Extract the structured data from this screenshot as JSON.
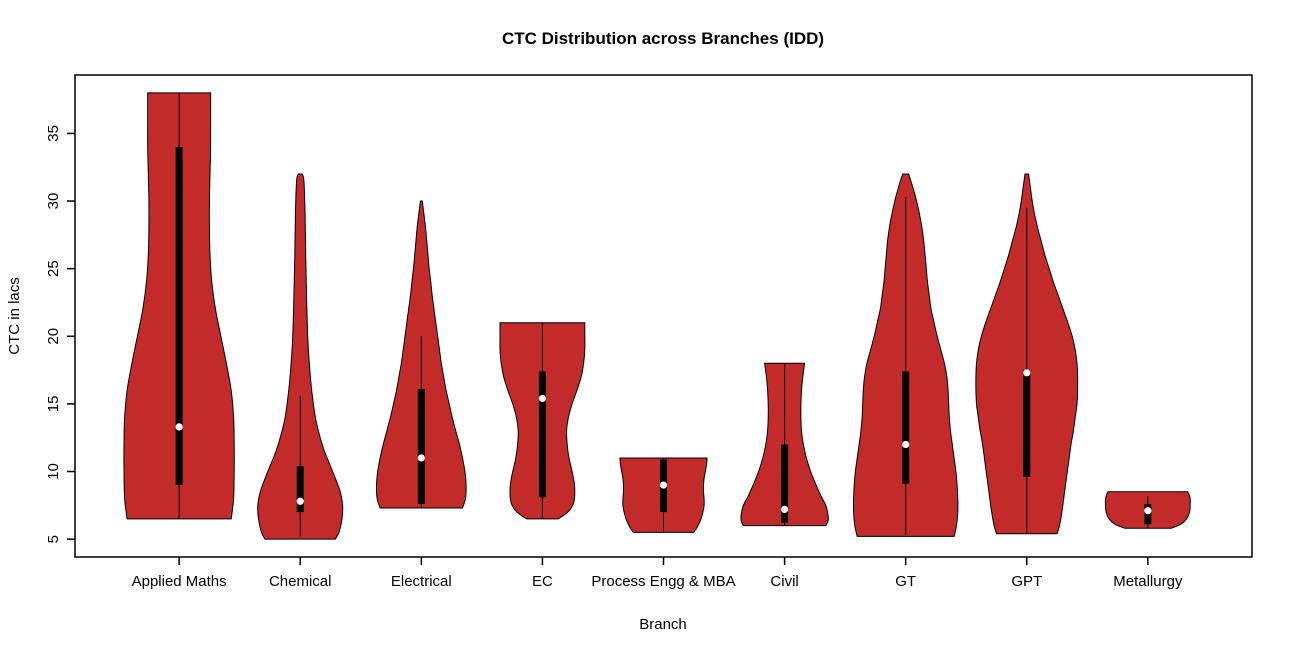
{
  "chart_data": {
    "type": "violin",
    "title": "CTC Distribution across Branches (IDD)",
    "xlabel": "Branch",
    "ylabel": "CTC in lacs",
    "y_ticks": [
      5,
      10,
      15,
      20,
      25,
      30,
      35
    ],
    "y_axis_range": [
      3.68,
      39.32
    ],
    "x_axis_range": [
      0.14,
      9.86
    ],
    "grid": false,
    "legend": false,
    "violin_fill": "#C32B2B",
    "violin_outline": "#000000",
    "box_color": "#000000",
    "median_dot_color": "#ffffff",
    "series": [
      {
        "name": "Applied Maths",
        "min": 6.5,
        "max": 38,
        "median": 13.3,
        "q1": 9.0,
        "q3": 34.0,
        "whisker_low": 6.5,
        "whisker_high": 38,
        "profile": [
          [
            6.5,
            0.43
          ],
          [
            8,
            0.45
          ],
          [
            10,
            0.455
          ],
          [
            12,
            0.455
          ],
          [
            14,
            0.45
          ],
          [
            16,
            0.43
          ],
          [
            18,
            0.39
          ],
          [
            20,
            0.345
          ],
          [
            22,
            0.3
          ],
          [
            24,
            0.27
          ],
          [
            26,
            0.255
          ],
          [
            28,
            0.25
          ],
          [
            30,
            0.25
          ],
          [
            32,
            0.255
          ],
          [
            34,
            0.26
          ],
          [
            36,
            0.26
          ],
          [
            38,
            0.26
          ]
        ]
      },
      {
        "name": "Chemical",
        "min": 5.0,
        "max": 32,
        "median": 7.8,
        "q1": 7.0,
        "q3": 10.4,
        "whisker_low": 5.2,
        "whisker_high": 15.6,
        "profile": [
          [
            5,
            0.29
          ],
          [
            5.5,
            0.32
          ],
          [
            6.5,
            0.345
          ],
          [
            7.5,
            0.35
          ],
          [
            8.5,
            0.33
          ],
          [
            9.5,
            0.29
          ],
          [
            10.5,
            0.245
          ],
          [
            11.5,
            0.2
          ],
          [
            12.5,
            0.165
          ],
          [
            14,
            0.125
          ],
          [
            16,
            0.095
          ],
          [
            18,
            0.075
          ],
          [
            20,
            0.062
          ],
          [
            23,
            0.052
          ],
          [
            26,
            0.045
          ],
          [
            29,
            0.04
          ],
          [
            31.5,
            0.03
          ],
          [
            32,
            0.015
          ]
        ]
      },
      {
        "name": "Electrical",
        "min": 7.3,
        "max": 30,
        "median": 11.0,
        "q1": 7.6,
        "q3": 16.1,
        "whisker_low": 7.3,
        "whisker_high": 20.0,
        "profile": [
          [
            7.3,
            0.34
          ],
          [
            8,
            0.365
          ],
          [
            9,
            0.37
          ],
          [
            10,
            0.36
          ],
          [
            11,
            0.34
          ],
          [
            12,
            0.315
          ],
          [
            13,
            0.285
          ],
          [
            14,
            0.255
          ],
          [
            15,
            0.23
          ],
          [
            16,
            0.205
          ],
          [
            17,
            0.185
          ],
          [
            18,
            0.165
          ],
          [
            19,
            0.15
          ],
          [
            20,
            0.135
          ],
          [
            21,
            0.12
          ],
          [
            22,
            0.105
          ],
          [
            23,
            0.09
          ],
          [
            24,
            0.078
          ],
          [
            25,
            0.065
          ],
          [
            26,
            0.055
          ],
          [
            27,
            0.045
          ],
          [
            28,
            0.035
          ],
          [
            29,
            0.022
          ],
          [
            30,
            0.008
          ]
        ]
      },
      {
        "name": "EC",
        "min": 6.5,
        "max": 21,
        "median": 15.4,
        "q1": 8.1,
        "q3": 17.4,
        "whisker_low": 6.5,
        "whisker_high": 21,
        "profile": [
          [
            6.5,
            0.13
          ],
          [
            7,
            0.21
          ],
          [
            7.5,
            0.25
          ],
          [
            8,
            0.265
          ],
          [
            9,
            0.265
          ],
          [
            10,
            0.245
          ],
          [
            11,
            0.22
          ],
          [
            12,
            0.205
          ],
          [
            13,
            0.2
          ],
          [
            14,
            0.215
          ],
          [
            15,
            0.245
          ],
          [
            16,
            0.285
          ],
          [
            17,
            0.32
          ],
          [
            18,
            0.34
          ],
          [
            19,
            0.35
          ],
          [
            20,
            0.35
          ],
          [
            21,
            0.35
          ]
        ]
      },
      {
        "name": "Process Engg & MBA",
        "min": 5.5,
        "max": 11,
        "median": 9.0,
        "q1": 7.0,
        "q3": 10.9,
        "whisker_low": 5.6,
        "whisker_high": 11,
        "profile": [
          [
            5.5,
            0.25
          ],
          [
            6,
            0.285
          ],
          [
            6.5,
            0.31
          ],
          [
            7,
            0.325
          ],
          [
            7.5,
            0.335
          ],
          [
            8,
            0.335
          ],
          [
            8.5,
            0.33
          ],
          [
            9,
            0.33
          ],
          [
            9.5,
            0.335
          ],
          [
            10,
            0.345
          ],
          [
            10.5,
            0.355
          ],
          [
            11,
            0.36
          ]
        ]
      },
      {
        "name": "Civil",
        "min": 6.0,
        "max": 18,
        "median": 7.2,
        "q1": 6.2,
        "q3": 12.0,
        "whisker_low": 6.0,
        "whisker_high": 18,
        "profile": [
          [
            6,
            0.34
          ],
          [
            6.4,
            0.36
          ],
          [
            7,
            0.355
          ],
          [
            7.6,
            0.335
          ],
          [
            8.2,
            0.3
          ],
          [
            9,
            0.26
          ],
          [
            10,
            0.215
          ],
          [
            11,
            0.18
          ],
          [
            12,
            0.155
          ],
          [
            13,
            0.14
          ],
          [
            14,
            0.135
          ],
          [
            15,
            0.135
          ],
          [
            16,
            0.14
          ],
          [
            17,
            0.15
          ],
          [
            18,
            0.165
          ]
        ]
      },
      {
        "name": "GT",
        "min": 5.2,
        "max": 32,
        "median": 12.0,
        "q1": 9.1,
        "q3": 17.4,
        "whisker_low": 5.3,
        "whisker_high": 30.3,
        "profile": [
          [
            5.2,
            0.4
          ],
          [
            6,
            0.42
          ],
          [
            7,
            0.43
          ],
          [
            8,
            0.43
          ],
          [
            9,
            0.425
          ],
          [
            10,
            0.415
          ],
          [
            11,
            0.4
          ],
          [
            12,
            0.385
          ],
          [
            13,
            0.37
          ],
          [
            14,
            0.36
          ],
          [
            15,
            0.355
          ],
          [
            16,
            0.35
          ],
          [
            17,
            0.34
          ],
          [
            18,
            0.32
          ],
          [
            19,
            0.29
          ],
          [
            20,
            0.26
          ],
          [
            21,
            0.235
          ],
          [
            22,
            0.21
          ],
          [
            23,
            0.195
          ],
          [
            24,
            0.18
          ],
          [
            25,
            0.17
          ],
          [
            26,
            0.16
          ],
          [
            27,
            0.15
          ],
          [
            28,
            0.135
          ],
          [
            29,
            0.115
          ],
          [
            30,
            0.09
          ],
          [
            31,
            0.06
          ],
          [
            32,
            0.025
          ]
        ]
      },
      {
        "name": "GPT",
        "min": 5.4,
        "max": 32,
        "median": 17.3,
        "q1": 9.6,
        "q3": 17.5,
        "whisker_low": 5.4,
        "whisker_high": 29.5,
        "profile": [
          [
            5.4,
            0.25
          ],
          [
            6,
            0.27
          ],
          [
            7,
            0.29
          ],
          [
            8,
            0.305
          ],
          [
            9,
            0.32
          ],
          [
            10,
            0.335
          ],
          [
            11,
            0.35
          ],
          [
            12,
            0.365
          ],
          [
            13,
            0.385
          ],
          [
            14,
            0.4
          ],
          [
            15,
            0.415
          ],
          [
            16,
            0.42
          ],
          [
            17,
            0.42
          ],
          [
            18,
            0.415
          ],
          [
            19,
            0.4
          ],
          [
            20,
            0.375
          ],
          [
            21,
            0.34
          ],
          [
            22,
            0.3
          ],
          [
            23,
            0.26
          ],
          [
            24,
            0.22
          ],
          [
            25,
            0.185
          ],
          [
            26,
            0.15
          ],
          [
            27,
            0.12
          ],
          [
            28,
            0.09
          ],
          [
            29,
            0.065
          ],
          [
            30,
            0.045
          ],
          [
            31,
            0.03
          ],
          [
            32,
            0.015
          ]
        ]
      },
      {
        "name": "Metallurgy",
        "min": 5.8,
        "max": 8.5,
        "median": 7.1,
        "q1": 6.1,
        "q3": 7.6,
        "whisker_low": 5.8,
        "whisker_high": 8.2,
        "profile": [
          [
            5.8,
            0.19
          ],
          [
            6.1,
            0.27
          ],
          [
            6.5,
            0.32
          ],
          [
            7,
            0.345
          ],
          [
            7.5,
            0.35
          ],
          [
            8,
            0.35
          ],
          [
            8.3,
            0.34
          ],
          [
            8.5,
            0.33
          ]
        ]
      }
    ]
  }
}
